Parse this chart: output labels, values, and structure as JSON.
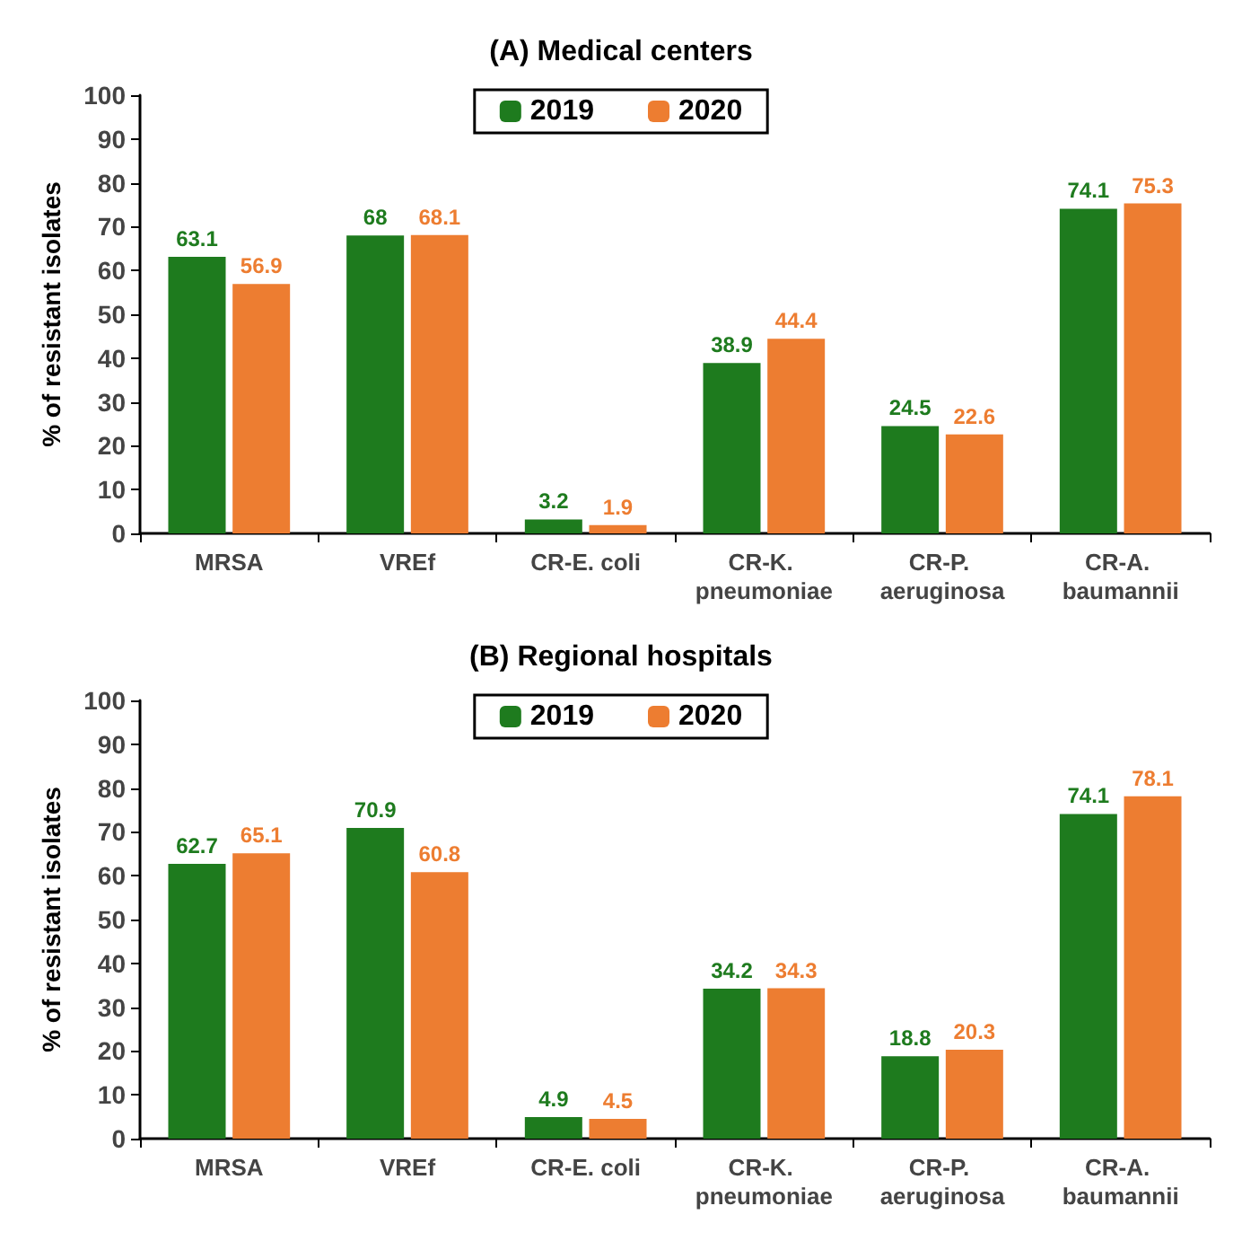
{
  "chart_data": [
    {
      "type": "bar",
      "title": "(A) Medical centers",
      "ylabel": "% of resistant isolates",
      "categories": [
        "MRSA",
        "VREf",
        "CR-E. coli",
        "CR-K. pneumoniae",
        "CR-P. aeruginosa",
        "CR-A. baumannii"
      ],
      "series": [
        {
          "name": "2019",
          "color": "#1e7b1e",
          "values": [
            63.1,
            68,
            3.2,
            38.9,
            24.5,
            74.1
          ]
        },
        {
          "name": "2020",
          "color": "#ed7d31",
          "values": [
            56.9,
            68.1,
            1.9,
            44.4,
            22.6,
            75.3
          ]
        }
      ],
      "ylim": [
        0,
        100
      ],
      "yticks": [
        0,
        10,
        20,
        30,
        40,
        50,
        60,
        70,
        80,
        90,
        100
      ],
      "grid": false,
      "legend": "top",
      "data_labels": true
    },
    {
      "type": "bar",
      "title": "(B) Regional hospitals",
      "ylabel": "% of resistant isolates",
      "categories": [
        "MRSA",
        "VREf",
        "CR-E. coli",
        "CR-K. pneumoniae",
        "CR-P. aeruginosa",
        "CR-A. baumannii"
      ],
      "series": [
        {
          "name": "2019",
          "color": "#1e7b1e",
          "values": [
            62.7,
            70.9,
            4.9,
            34.2,
            18.8,
            74.1
          ]
        },
        {
          "name": "2020",
          "color": "#ed7d31",
          "values": [
            65.1,
            60.8,
            4.5,
            34.3,
            20.3,
            78.1
          ]
        }
      ],
      "ylim": [
        0,
        100
      ],
      "yticks": [
        0,
        10,
        20,
        30,
        40,
        50,
        60,
        70,
        80,
        90,
        100
      ],
      "grid": false,
      "legend": "top",
      "data_labels": true
    }
  ]
}
